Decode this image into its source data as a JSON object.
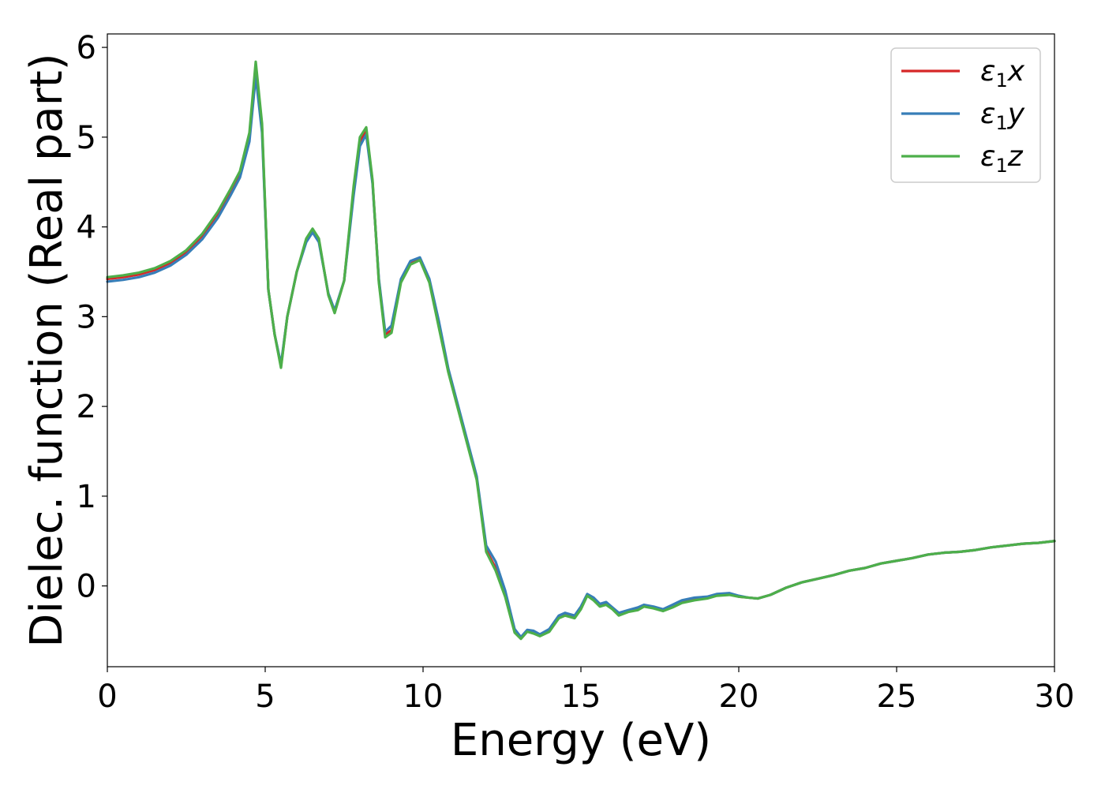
{
  "chart_data": {
    "type": "line",
    "title": "",
    "xlabel": "Energy (eV)",
    "ylabel": "Dielec. function (Real part)",
    "xlim": [
      0,
      30
    ],
    "ylim": [
      -0.9,
      6.15
    ],
    "xticks": [
      0,
      5,
      10,
      15,
      20,
      25,
      30
    ],
    "yticks": [
      0,
      1,
      2,
      3,
      4,
      5,
      6
    ],
    "grid": false,
    "legend_position": "top-right",
    "x": [
      0,
      0.5,
      1,
      1.5,
      2,
      2.5,
      3,
      3.5,
      3.9,
      4.2,
      4.5,
      4.7,
      4.9,
      5.1,
      5.3,
      5.5,
      5.7,
      6.0,
      6.3,
      6.5,
      6.7,
      7.0,
      7.2,
      7.5,
      7.8,
      8.0,
      8.2,
      8.4,
      8.6,
      8.8,
      9.0,
      9.3,
      9.6,
      9.9,
      10.2,
      10.5,
      10.8,
      11.1,
      11.4,
      11.7,
      12.0,
      12.3,
      12.6,
      12.9,
      13.1,
      13.3,
      13.5,
      13.7,
      14.0,
      14.3,
      14.5,
      14.8,
      15.0,
      15.2,
      15.4,
      15.6,
      15.8,
      16.0,
      16.2,
      16.5,
      16.8,
      17.0,
      17.3,
      17.6,
      17.9,
      18.2,
      18.6,
      19.0,
      19.3,
      19.7,
      20.0,
      20.3,
      20.6,
      21.0,
      21.5,
      22.0,
      22.5,
      23.0,
      23.5,
      24.0,
      24.5,
      25.0,
      25.5,
      26.0,
      26.5,
      27.0,
      27.5,
      28.0,
      28.5,
      29.0,
      29.5,
      30.0
    ],
    "series": [
      {
        "name": "ε₁x",
        "color": "#d62728",
        "values": [
          3.42,
          3.44,
          3.47,
          3.52,
          3.6,
          3.72,
          3.9,
          4.15,
          4.4,
          4.6,
          5.0,
          5.78,
          5.1,
          3.3,
          2.8,
          2.45,
          3.0,
          3.5,
          3.85,
          3.97,
          3.85,
          3.25,
          3.05,
          3.4,
          4.4,
          4.95,
          5.08,
          4.5,
          3.4,
          2.8,
          2.85,
          3.4,
          3.6,
          3.65,
          3.4,
          2.9,
          2.4,
          2.0,
          1.6,
          1.2,
          0.4,
          0.2,
          -0.1,
          -0.5,
          -0.58,
          -0.5,
          -0.52,
          -0.55,
          -0.5,
          -0.35,
          -0.32,
          -0.35,
          -0.25,
          -0.1,
          -0.15,
          -0.22,
          -0.2,
          -0.25,
          -0.32,
          -0.28,
          -0.26,
          -0.22,
          -0.24,
          -0.27,
          -0.23,
          -0.18,
          -0.15,
          -0.13,
          -0.1,
          -0.09,
          -0.12,
          -0.13,
          -0.14,
          -0.1,
          -0.02,
          0.04,
          0.08,
          0.12,
          0.17,
          0.2,
          0.25,
          0.28,
          0.31,
          0.35,
          0.37,
          0.38,
          0.4,
          0.43,
          0.45,
          0.47,
          0.48,
          0.5
        ]
      },
      {
        "name": "ε₁y",
        "color": "#377eb8",
        "values": [
          3.39,
          3.41,
          3.44,
          3.49,
          3.57,
          3.69,
          3.86,
          4.1,
          4.35,
          4.55,
          4.95,
          5.68,
          5.05,
          3.3,
          2.8,
          2.47,
          3.0,
          3.5,
          3.83,
          3.94,
          3.83,
          3.26,
          3.07,
          3.4,
          4.35,
          4.9,
          5.03,
          4.48,
          3.42,
          2.83,
          2.9,
          3.42,
          3.62,
          3.66,
          3.42,
          2.95,
          2.42,
          2.02,
          1.62,
          1.22,
          0.45,
          0.27,
          -0.05,
          -0.48,
          -0.57,
          -0.49,
          -0.5,
          -0.54,
          -0.48,
          -0.33,
          -0.3,
          -0.33,
          -0.23,
          -0.09,
          -0.13,
          -0.2,
          -0.18,
          -0.24,
          -0.3,
          -0.27,
          -0.24,
          -0.21,
          -0.23,
          -0.26,
          -0.21,
          -0.16,
          -0.13,
          -0.12,
          -0.09,
          -0.08,
          -0.11,
          -0.13,
          -0.14,
          -0.1,
          -0.02,
          0.04,
          0.08,
          0.12,
          0.17,
          0.2,
          0.25,
          0.28,
          0.31,
          0.35,
          0.37,
          0.38,
          0.4,
          0.43,
          0.45,
          0.47,
          0.48,
          0.5
        ]
      },
      {
        "name": "ε₁z",
        "color": "#4daf4a",
        "values": [
          3.44,
          3.46,
          3.49,
          3.54,
          3.62,
          3.74,
          3.92,
          4.17,
          4.42,
          4.62,
          5.05,
          5.84,
          5.15,
          3.3,
          2.8,
          2.43,
          3.0,
          3.5,
          3.87,
          3.98,
          3.87,
          3.24,
          3.04,
          3.4,
          4.45,
          5.0,
          5.11,
          4.52,
          3.38,
          2.77,
          2.82,
          3.38,
          3.58,
          3.63,
          3.38,
          2.88,
          2.38,
          1.98,
          1.58,
          1.18,
          0.38,
          0.17,
          -0.12,
          -0.52,
          -0.59,
          -0.51,
          -0.53,
          -0.56,
          -0.51,
          -0.36,
          -0.33,
          -0.36,
          -0.26,
          -0.11,
          -0.16,
          -0.23,
          -0.21,
          -0.26,
          -0.33,
          -0.29,
          -0.27,
          -0.23,
          -0.25,
          -0.28,
          -0.24,
          -0.19,
          -0.16,
          -0.14,
          -0.11,
          -0.1,
          -0.12,
          -0.13,
          -0.14,
          -0.1,
          -0.02,
          0.04,
          0.08,
          0.12,
          0.17,
          0.2,
          0.25,
          0.28,
          0.31,
          0.35,
          0.37,
          0.38,
          0.4,
          0.43,
          0.45,
          0.47,
          0.48,
          0.5
        ]
      }
    ],
    "legend": [
      {
        "prefix": "ε",
        "sub": "1",
        "suffix": "x"
      },
      {
        "prefix": "ε",
        "sub": "1",
        "suffix": "y"
      },
      {
        "prefix": "ε",
        "sub": "1",
        "suffix": "z"
      }
    ]
  }
}
